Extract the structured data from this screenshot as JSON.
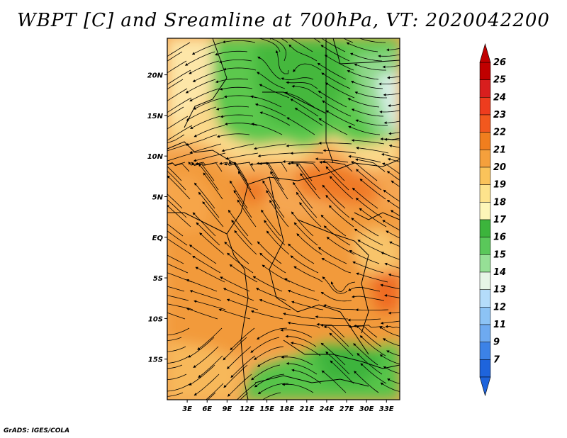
{
  "title": "WBPT [C] and Sreamline at 700hPa, VT: 2020042200",
  "footer": "GrADS: IGES/COLA",
  "latitudes": [
    {
      "label": "20N",
      "value": 20
    },
    {
      "label": "15N",
      "value": 15
    },
    {
      "label": "10N",
      "value": 10
    },
    {
      "label": "5N",
      "value": 5
    },
    {
      "label": "EQ",
      "value": 0
    },
    {
      "label": "5S",
      "value": -5
    },
    {
      "label": "10S",
      "value": -10
    },
    {
      "label": "15S",
      "value": -15
    }
  ],
  "longitudes": [
    {
      "label": "3E",
      "value": 3
    },
    {
      "label": "6E",
      "value": 6
    },
    {
      "label": "9E",
      "value": 9
    },
    {
      "label": "12E",
      "value": 12
    },
    {
      "label": "15E",
      "value": 15
    },
    {
      "label": "18E",
      "value": 18
    },
    {
      "label": "21E",
      "value": 21
    },
    {
      "label": "24E",
      "value": 24
    },
    {
      "label": "27E",
      "value": 27
    },
    {
      "label": "30E",
      "value": 30
    },
    {
      "label": "33E",
      "value": 33
    }
  ],
  "colorbar": {
    "levels": [
      "26",
      "25",
      "24",
      "23",
      "22",
      "21",
      "20",
      "19",
      "18",
      "17",
      "16",
      "15",
      "14",
      "13",
      "12",
      "11",
      "9",
      "7"
    ],
    "colors": [
      "#c00000",
      "#d81e1e",
      "#ee3c1e",
      "#f2581e",
      "#f07e1e",
      "#f5a03c",
      "#fac35a",
      "#fde38c",
      "#fdf6b8",
      "#3cb43c",
      "#5ac85a",
      "#96e096",
      "#e6f5e6",
      "#b4dcfa",
      "#8cc3f5",
      "#6eaaf0",
      "#3c82e6",
      "#1e64dc"
    ]
  },
  "map_extent": {
    "lon_min": 0,
    "lon_max": 35,
    "lat_min": -20,
    "lat_max": 24.5
  }
}
